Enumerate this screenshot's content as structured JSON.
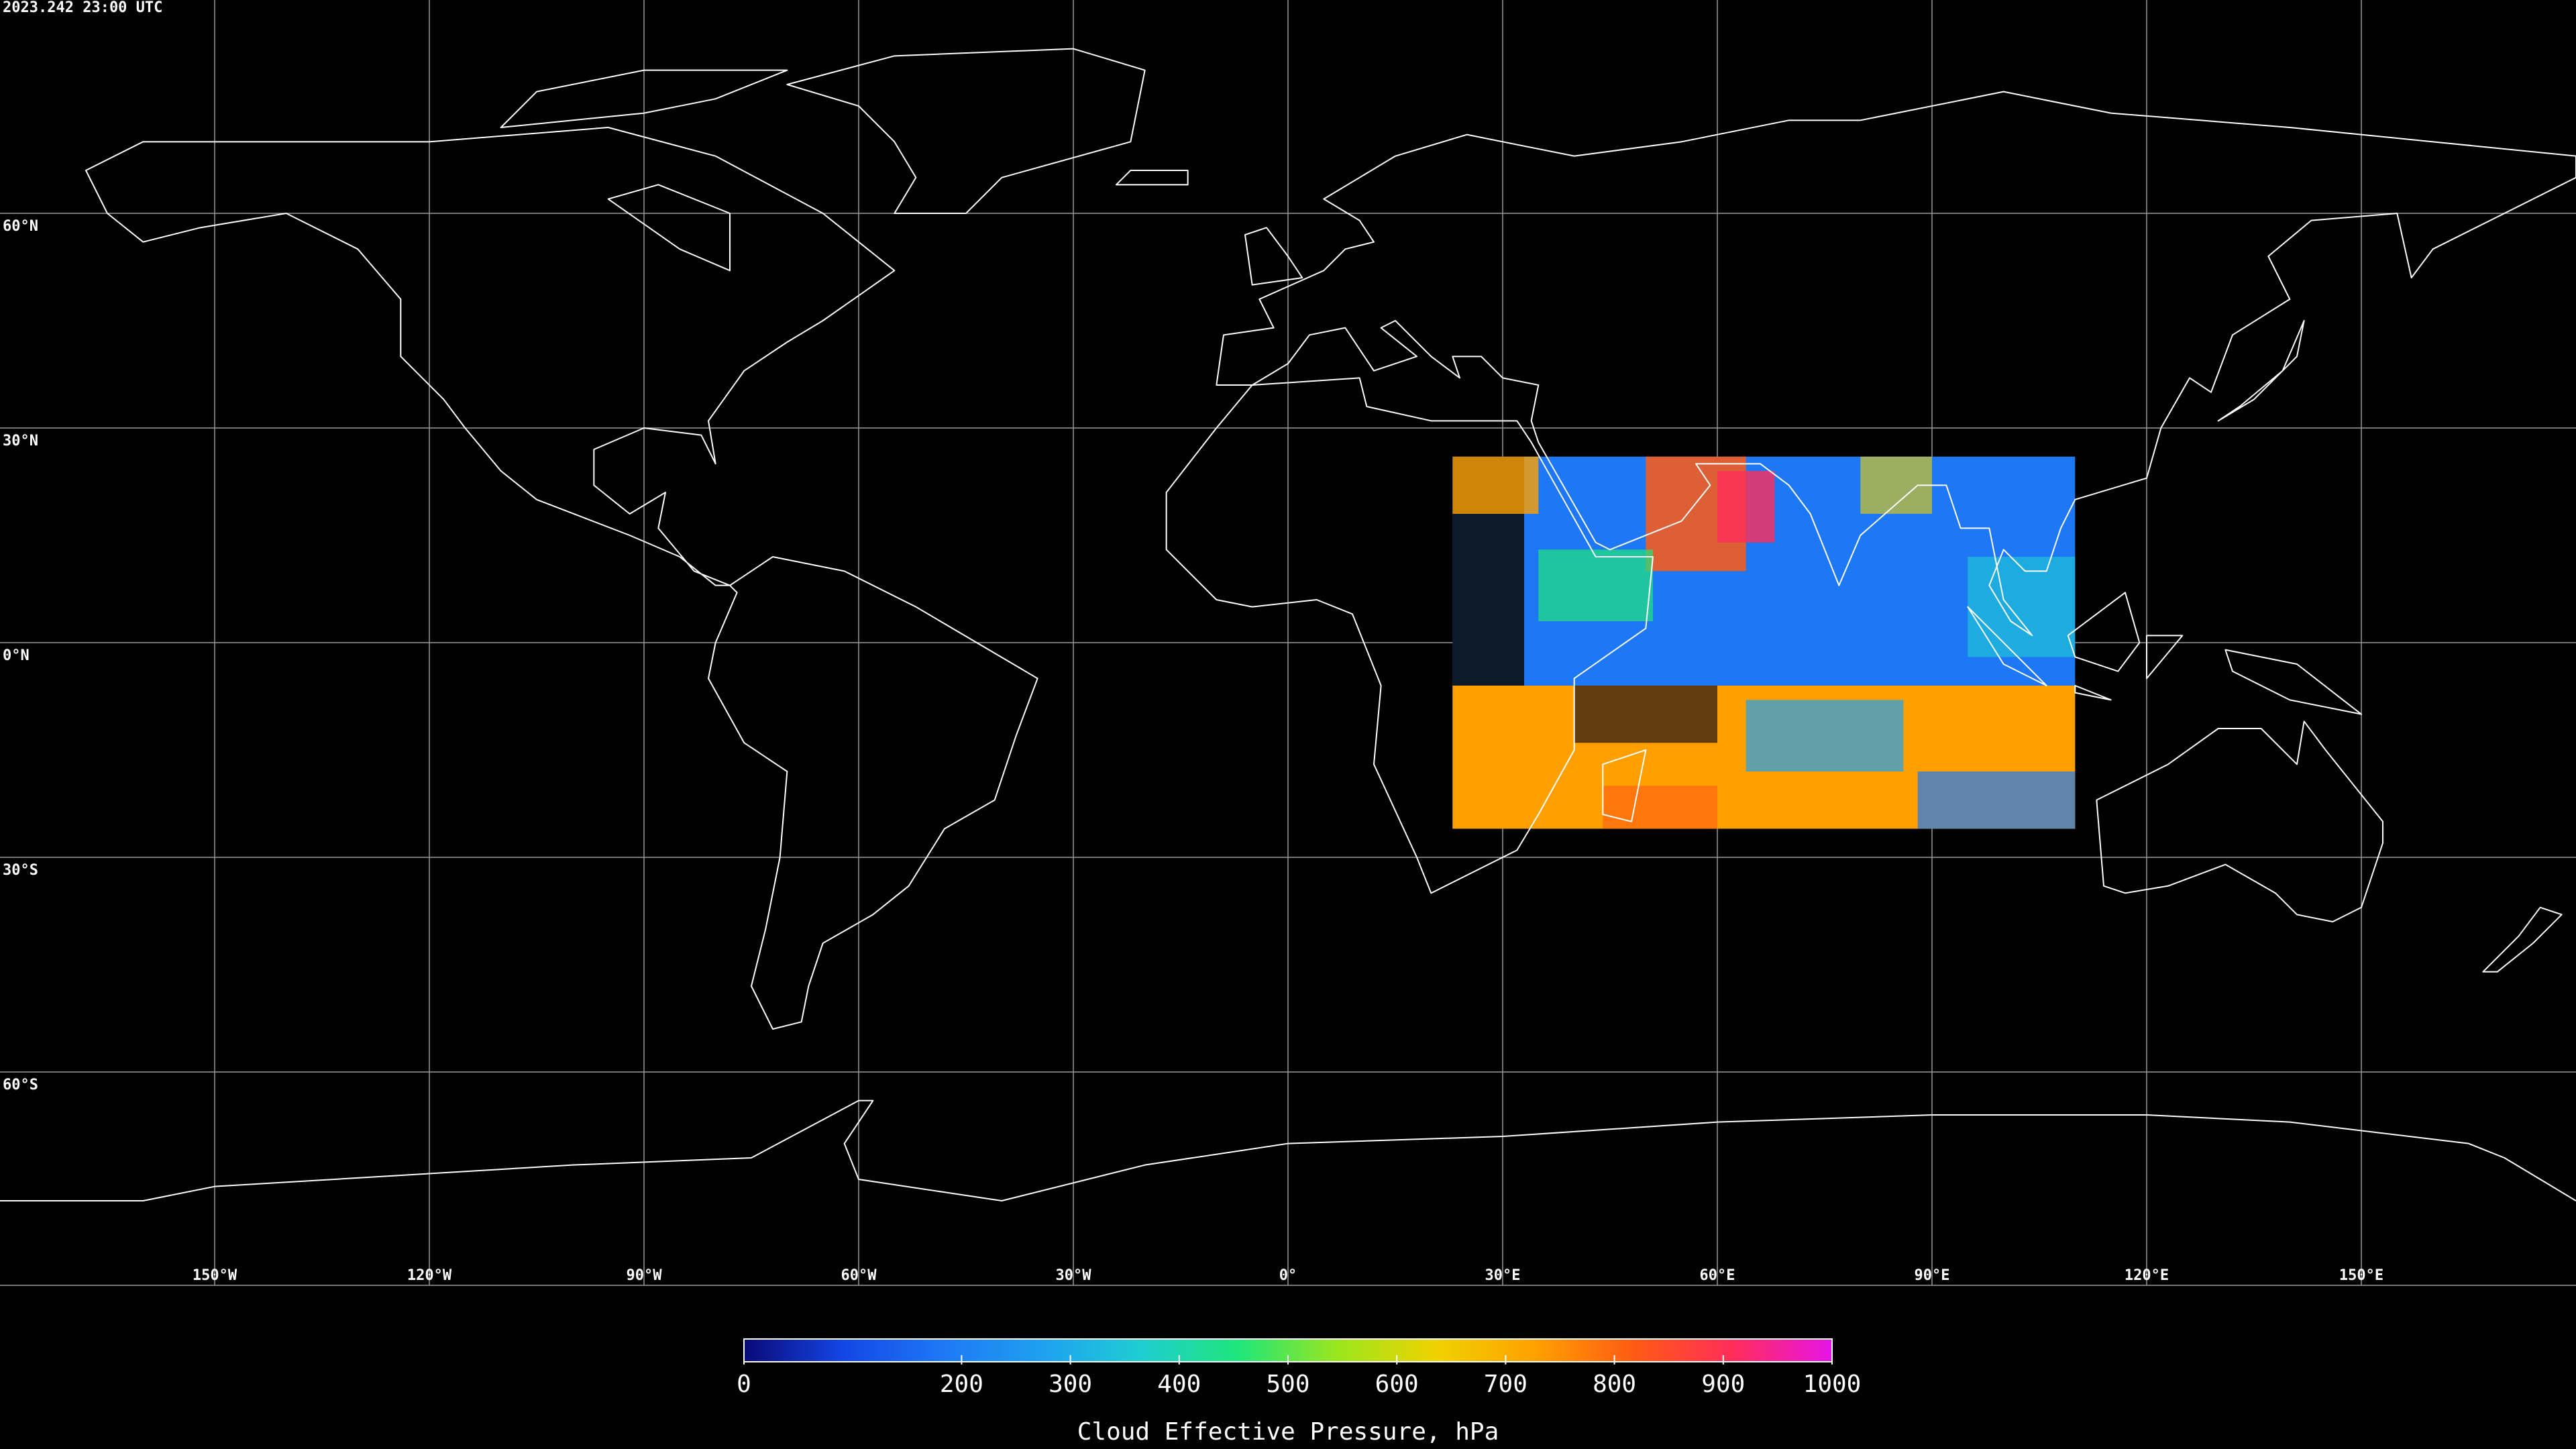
{
  "map": {
    "timestamp": "2023.242 23:00 UTC",
    "latitudes": [
      {
        "value": 60,
        "label": "60°N"
      },
      {
        "value": 30,
        "label": "30°N"
      },
      {
        "value": 0,
        "label": "0°N"
      },
      {
        "value": -30,
        "label": "30°S"
      },
      {
        "value": -60,
        "label": "60°S"
      }
    ],
    "longitudes": [
      {
        "value": -150,
        "label": "150°W"
      },
      {
        "value": -120,
        "label": "120°W"
      },
      {
        "value": -90,
        "label": "90°W"
      },
      {
        "value": -60,
        "label": "60°W"
      },
      {
        "value": -30,
        "label": "30°W"
      },
      {
        "value": 0,
        "label": "0°"
      },
      {
        "value": 30,
        "label": "30°E"
      },
      {
        "value": 60,
        "label": "60°E"
      },
      {
        "value": 90,
        "label": "90°E"
      },
      {
        "value": 120,
        "label": "120°E"
      },
      {
        "value": 150,
        "label": "150°E"
      }
    ]
  },
  "colorbar": {
    "title": "Cloud Effective Pressure, hPa",
    "lim": [
      0,
      1000
    ],
    "ticks": [
      0,
      200,
      300,
      400,
      500,
      600,
      700,
      800,
      900,
      1000
    ],
    "colormap": [
      "#0a0a78",
      "#1446e6",
      "#1e78f5",
      "#1ea0f0",
      "#1ecdd2",
      "#1ee67a",
      "#9be61e",
      "#f0d200",
      "#ffa000",
      "#ff5a14",
      "#ff2d5a",
      "#e614e6"
    ]
  }
}
